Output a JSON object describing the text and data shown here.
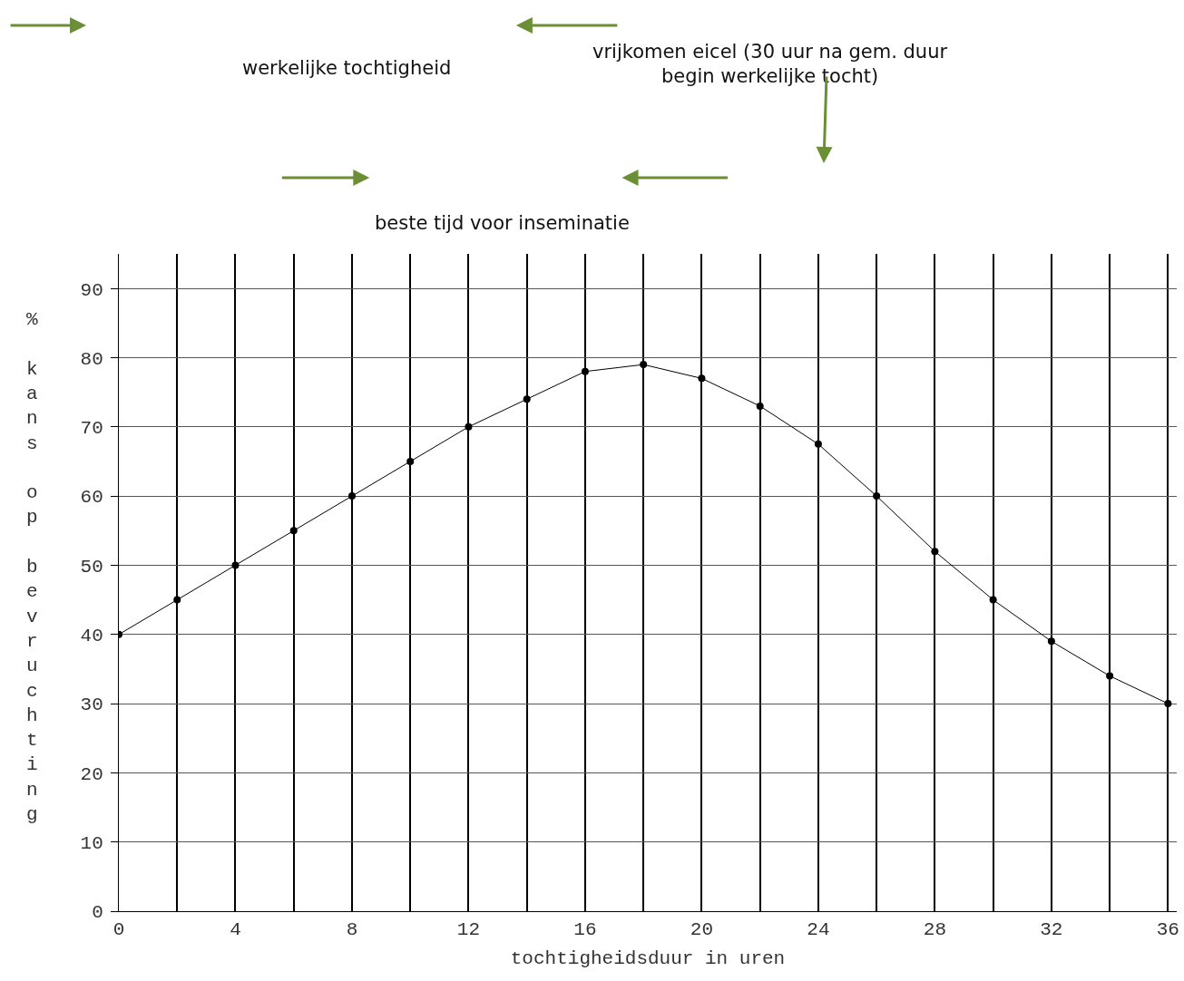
{
  "chart_data": {
    "type": "line",
    "x": [
      0,
      2,
      4,
      6,
      8,
      10,
      12,
      14,
      16,
      18,
      20,
      22,
      24,
      26,
      28,
      30,
      32,
      34,
      36
    ],
    "series": [
      {
        "color": "#000000",
        "values": [
          40,
          45,
          50,
          55,
          60,
          65,
          70,
          74,
          78,
          79,
          77,
          73,
          67.5,
          60,
          52,
          45,
          39,
          34,
          30
        ]
      }
    ],
    "xlabel": "tochtigheidsduur in uren",
    "ylabel": "% kans op bevruchting",
    "annotations": [
      "werkelijke tochtigheid",
      "vrijkomen eicel (30 uur na gem. duur\nbegin werkelijke tocht)",
      "beste tijd voor inseminatie"
    ],
    "xlim": [
      0,
      36.3
    ],
    "ylim": [
      0,
      95
    ],
    "xticks": [
      0,
      {
        "value": 2,
        "label": null
      },
      4,
      {
        "value": 6,
        "label": null
      },
      8,
      {
        "value": 10,
        "label": null
      },
      12,
      {
        "value": 14,
        "label": null
      },
      16,
      {
        "value": 18,
        "label": null
      },
      20,
      {
        "value": 22,
        "label": null
      },
      24,
      {
        "value": 26,
        "label": null
      },
      28,
      {
        "value": 30,
        "label": null
      },
      32,
      {
        "value": 34,
        "label": null
      },
      36
    ],
    "yticks": [
      0,
      10,
      20,
      30,
      40,
      50,
      60,
      70,
      80,
      90
    ],
    "grid": true,
    "marker": "circle",
    "line_style": "solid"
  }
}
